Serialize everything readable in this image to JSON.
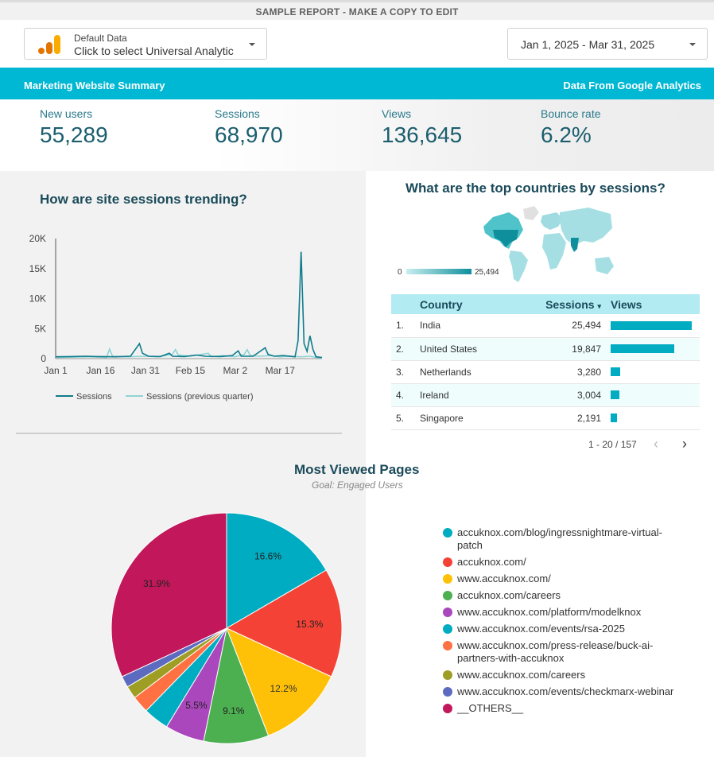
{
  "banner": "SAMPLE REPORT - MAKE A COPY TO EDIT",
  "data_source": {
    "label": "Default Data",
    "value": "Click to select Universal Analytic"
  },
  "date_range": "Jan 1, 2025 - Mar 31, 2025",
  "header": {
    "title": "Marketing Website Summary",
    "source": "Data From Google Analytics"
  },
  "kpis": [
    {
      "label": "New users",
      "value": "55,289"
    },
    {
      "label": "Sessions",
      "value": "68,970"
    },
    {
      "label": "Views",
      "value": "136,645"
    },
    {
      "label": "Bounce rate",
      "value": "6.2%"
    }
  ],
  "sessions_title": "How are site sessions trending?",
  "countries_title": "What are the top countries by sessions?",
  "map_scale": {
    "min": "0",
    "max": "25,494"
  },
  "table": {
    "headers": {
      "country": "Country",
      "sessions": "Sessions",
      "views": "Views"
    },
    "rows": [
      {
        "rank": "1.",
        "country": "India",
        "sessions": "25,494",
        "views_fraction": 1.0
      },
      {
        "rank": "2.",
        "country": "United States",
        "sessions": "19,847",
        "views_fraction": 0.78
      },
      {
        "rank": "3.",
        "country": "Netherlands",
        "sessions": "3,280",
        "views_fraction": 0.12
      },
      {
        "rank": "4.",
        "country": "Ireland",
        "sessions": "3,004",
        "views_fraction": 0.11
      },
      {
        "rank": "5.",
        "country": "Singapore",
        "sessions": "2,191",
        "views_fraction": 0.08
      }
    ],
    "pagination": "1 - 20 / 157"
  },
  "pages_title": "Most Viewed Pages",
  "pages_subtitle": "Goal: Engaged Users",
  "colors": {
    "accent": "#00b8d4",
    "line": "#0f7c8c",
    "line_prev": "#8fd3d5"
  },
  "chart_data": [
    {
      "type": "line",
      "title": "How are site sessions trending?",
      "x_tick_labels": [
        "Jan 1",
        "Jan 16",
        "Jan 31",
        "Feb 15",
        "Mar 2",
        "Mar 17"
      ],
      "y_tick_labels": [
        "0",
        "5K",
        "10K",
        "15K",
        "20K"
      ],
      "ylim": [
        0,
        20000
      ],
      "x_count": 90,
      "series": [
        {
          "name": "Sessions",
          "color": "#0f7c8c",
          "points": [
            [
              0,
              300
            ],
            [
              5,
              350
            ],
            [
              10,
              400
            ],
            [
              14,
              350
            ],
            [
              20,
              300
            ],
            [
              25,
              400
            ],
            [
              28,
              2500
            ],
            [
              29,
              900
            ],
            [
              31,
              400
            ],
            [
              35,
              350
            ],
            [
              38,
              900
            ],
            [
              39,
              400
            ],
            [
              43,
              350
            ],
            [
              47,
              600
            ],
            [
              50,
              400
            ],
            [
              55,
              350
            ],
            [
              59,
              500
            ],
            [
              61,
              1300
            ],
            [
              62,
              400
            ],
            [
              66,
              400
            ],
            [
              70,
              1800
            ],
            [
              71,
              700
            ],
            [
              73,
              400
            ],
            [
              76,
              500
            ],
            [
              80,
              300
            ],
            [
              81,
              3000
            ],
            [
              82,
              17800
            ],
            [
              83,
              2500
            ],
            [
              84,
              1200
            ],
            [
              85,
              3800
            ],
            [
              86,
              1500
            ],
            [
              87,
              300
            ],
            [
              89,
              200
            ]
          ]
        },
        {
          "name": "Sessions (previous quarter)",
          "color": "#8fd3d5",
          "points": [
            [
              0,
              200
            ],
            [
              6,
              250
            ],
            [
              12,
              300
            ],
            [
              17,
              200
            ],
            [
              18,
              1600
            ],
            [
              19,
              400
            ],
            [
              24,
              300
            ],
            [
              30,
              400
            ],
            [
              34,
              300
            ],
            [
              39,
              700
            ],
            [
              40,
              1500
            ],
            [
              41,
              600
            ],
            [
              45,
              400
            ],
            [
              51,
              900
            ],
            [
              52,
              300
            ],
            [
              56,
              500
            ],
            [
              60,
              300
            ],
            [
              63,
              700
            ],
            [
              64,
              1500
            ],
            [
              65,
              500
            ],
            [
              68,
              400
            ],
            [
              72,
              500
            ],
            [
              75,
              300
            ],
            [
              78,
              400
            ],
            [
              82,
              300
            ],
            [
              85,
              400
            ],
            [
              87,
              200
            ],
            [
              89,
              100
            ]
          ]
        }
      ]
    },
    {
      "type": "pie",
      "title": "Most Viewed Pages",
      "subtitle": "Goal: Engaged Users",
      "slices": [
        {
          "label": "accuknox.com/blog/ingressnightmare-virtual-patch",
          "value": 16.6,
          "color": "#00acc1",
          "show_label": true
        },
        {
          "label": "accuknox.com/",
          "value": 15.3,
          "color": "#f44336",
          "show_label": true
        },
        {
          "label": "www.accuknox.com/",
          "value": 12.2,
          "color": "#ffc107",
          "show_label": true
        },
        {
          "label": "accuknox.com/careers",
          "value": 9.1,
          "color": "#4caf50",
          "show_label": true
        },
        {
          "label": "www.accuknox.com/platform/modelknox",
          "value": 5.5,
          "color": "#ab47bc",
          "show_label": true
        },
        {
          "label": "www.accuknox.com/events/rsa-2025",
          "value": 3.6,
          "color": "#00acc1",
          "show_label": false
        },
        {
          "label": "www.accuknox.com/press-release/buck-ai-partners-with-accuknox",
          "value": 2.4,
          "color": "#ff7043",
          "show_label": false
        },
        {
          "label": "www.accuknox.com/careers",
          "value": 1.8,
          "color": "#9e9d24",
          "show_label": false
        },
        {
          "label": "www.accuknox.com/events/checkmarx-webinar",
          "value": 1.6,
          "color": "#5c6bc0",
          "show_label": false
        },
        {
          "label": "__OTHERS__",
          "value": 31.9,
          "color": "#c2185b",
          "show_label": true
        }
      ]
    }
  ]
}
